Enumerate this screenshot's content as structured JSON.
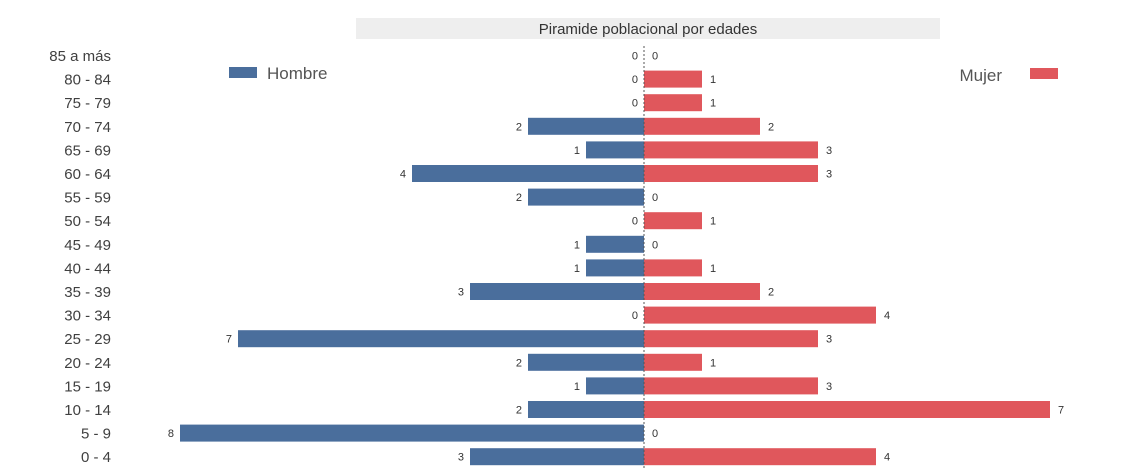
{
  "chart_data": {
    "type": "bar",
    "orientation": "horizontal",
    "layout": "population-pyramid",
    "title": "Piramide poblacional por edades",
    "categories": [
      "85 a más",
      "80 - 84",
      "75 - 79",
      "70 - 74",
      "65 - 69",
      "60 - 64",
      "55 - 59",
      "50 - 54",
      "45 - 49",
      "40 - 44",
      "35 - 39",
      "30 - 34",
      "25 - 29",
      "20 - 24",
      "15 - 19",
      "10 - 14",
      "5 - 9",
      "0 - 4"
    ],
    "series": [
      {
        "name": "Hombre",
        "color": "#4a6e9c",
        "side": "left",
        "values": [
          0,
          0,
          0,
          2,
          1,
          4,
          2,
          0,
          1,
          1,
          3,
          0,
          7,
          2,
          1,
          2,
          8,
          3
        ]
      },
      {
        "name": "Mujer",
        "color": "#e0575c",
        "side": "right",
        "values": [
          0,
          1,
          1,
          2,
          3,
          3,
          0,
          1,
          0,
          1,
          2,
          4,
          3,
          1,
          3,
          7,
          0,
          4
        ]
      }
    ],
    "xlim": [
      -8,
      8
    ],
    "data_labels": true,
    "grid": false,
    "axis_ticks_shown": false,
    "center_line": "dotted",
    "legend": {
      "Hombre": "top-left",
      "Mujer": "top-right"
    },
    "title_background": "#eeeeee"
  }
}
